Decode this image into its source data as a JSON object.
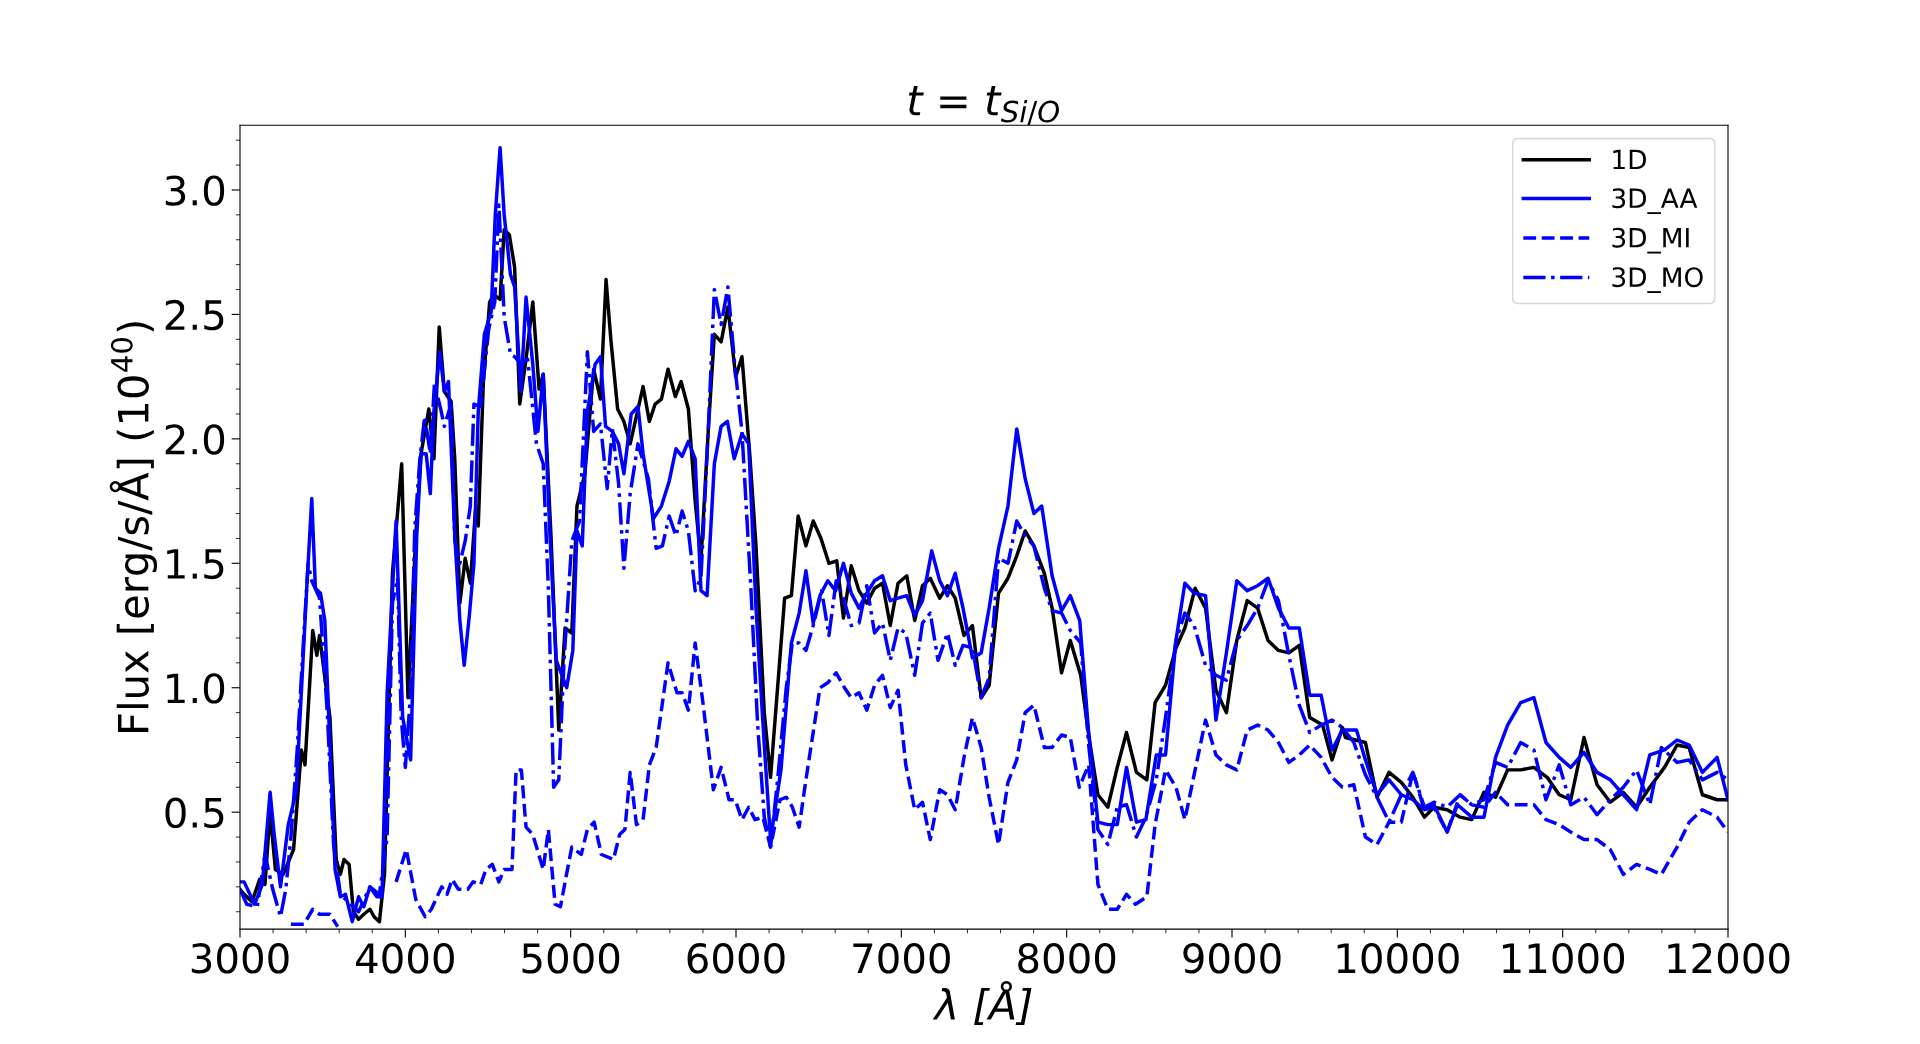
{
  "chart_data": {
    "type": "line",
    "title": "t = t$_{Si/O}$",
    "xlabel": "λ [Å]",
    "ylabel": "Flux [erg/s/Å] (10$^{40}$)",
    "xlim": [
      3000,
      12000
    ],
    "ylim": [
      0.03,
      3.26
    ],
    "xticks": [
      3000,
      4000,
      5000,
      6000,
      7000,
      8000,
      9000,
      10000,
      11000,
      12000
    ],
    "yticks": [
      0.5,
      {
        "value": 1,
        "label": "1.0"
      },
      1.5,
      {
        "value": 2,
        "label": "2.0"
      },
      2.5,
      {
        "value": 3,
        "label": "3.0"
      }
    ],
    "grid": false,
    "legend": "top right",
    "marker": "none",
    "series": [
      {
        "name": "1D",
        "color": "#000000",
        "line_style": "solid",
        "x": [
          3000,
          3025,
          3072,
          3119,
          3151,
          3182,
          3214,
          3261,
          3324,
          3371,
          3393,
          3440,
          3465,
          3481,
          3544,
          3582,
          3607,
          3629,
          3660,
          3686,
          3717,
          3749,
          3786,
          3811,
          3843,
          3874,
          3922,
          3978,
          4016,
          4063,
          4095,
          4142,
          4173,
          4205,
          4236,
          4277,
          4299,
          4330,
          4362,
          4393,
          4425,
          4441,
          4472,
          4510,
          4535,
          4573,
          4598,
          4629,
          4661,
          4692,
          4730,
          4771,
          4809,
          4834,
          4881,
          4928,
          4966,
          5007,
          5038,
          5086,
          5139,
          5180,
          5214,
          5243,
          5284,
          5322,
          5360,
          5438,
          5476,
          5511,
          5549,
          5589,
          5633,
          5668,
          5712,
          5753,
          5788,
          5832,
          5869,
          5910,
          5951,
          5998,
          6036,
          6083,
          6121,
          6171,
          6209,
          6294,
          6335,
          6376,
          6423,
          6467,
          6514,
          6562,
          6609,
          6650,
          6697,
          6744,
          6791,
          6838,
          6886,
          6933,
          6980,
          7033,
          7081,
          7128,
          7175,
          7232,
          7279,
          7326,
          7379,
          7430,
          7483,
          7531,
          7588,
          7645,
          7698,
          7749,
          7802,
          7865,
          7912,
          7969,
          8022,
          8085,
          8133,
          8189,
          8249,
          8306,
          8362,
          8422,
          8485,
          8535,
          8598,
          8661,
          8715,
          8777,
          8840,
          8903,
          8966,
          9029,
          9092,
          9155,
          9218,
          9281,
          9344,
          9407,
          9470,
          9548,
          9605,
          9668,
          9686,
          9807,
          9877,
          9950,
          10024,
          10094,
          10164,
          10221,
          10301,
          10380,
          10450,
          10524,
          10594,
          10667,
          10746,
          10826,
          10906,
          10979,
          11049,
          11129,
          11208,
          11288,
          11367,
          11447,
          11527,
          11616,
          11692,
          11765,
          11845,
          11934,
          12000
        ],
        "values": [
          0.19,
          0.17,
          0.14,
          0.23,
          0.21,
          0.5,
          0.27,
          0.25,
          0.35,
          0.75,
          0.69,
          1.23,
          1.13,
          1.21,
          0.88,
          0.31,
          0.25,
          0.31,
          0.29,
          0.1,
          0.07,
          0.09,
          0.11,
          0.08,
          0.06,
          0.25,
          1.46,
          1.9,
          0.96,
          1.61,
          1.94,
          2.12,
          1.92,
          2.45,
          2.19,
          2.15,
          1.92,
          1.34,
          1.52,
          1.42,
          1.72,
          1.65,
          2.23,
          2.55,
          2.58,
          2.56,
          2.84,
          2.82,
          2.69,
          2.14,
          2.32,
          2.55,
          2.2,
          2.26,
          1.61,
          0.83,
          1.24,
          1.22,
          1.73,
          1.86,
          2.28,
          2.16,
          2.64,
          2.4,
          2.12,
          2.07,
          1.98,
          2.21,
          2.07,
          2.14,
          2.16,
          2.28,
          2.17,
          2.23,
          2.12,
          1.75,
          1.51,
          2.03,
          2.42,
          2.39,
          2.53,
          2.25,
          2.33,
          1.94,
          1.57,
          0.9,
          0.64,
          1.36,
          1.37,
          1.69,
          1.57,
          1.67,
          1.6,
          1.5,
          1.51,
          1.28,
          1.49,
          1.39,
          1.34,
          1.4,
          1.42,
          1.25,
          1.42,
          1.45,
          1.27,
          1.41,
          1.44,
          1.36,
          1.41,
          1.36,
          1.21,
          1.25,
          0.96,
          1.01,
          1.38,
          1.44,
          1.53,
          1.63,
          1.57,
          1.46,
          1.32,
          1.06,
          1.19,
          1.05,
          0.81,
          0.57,
          0.52,
          0.68,
          0.82,
          0.66,
          0.63,
          0.94,
          1.01,
          1.16,
          1.24,
          1.4,
          1.32,
          0.99,
          0.9,
          1.19,
          1.35,
          1.32,
          1.19,
          1.15,
          1.14,
          1.17,
          0.88,
          0.85,
          0.71,
          0.84,
          0.8,
          0.78,
          0.56,
          0.66,
          0.62,
          0.56,
          0.48,
          0.52,
          0.51,
          0.48,
          0.47,
          0.58,
          0.56,
          0.67,
          0.67,
          0.68,
          0.64,
          0.57,
          0.55,
          0.8,
          0.61,
          0.54,
          0.58,
          0.52,
          0.6,
          0.68,
          0.77,
          0.76,
          0.57,
          0.55,
          0.55
        ]
      },
      {
        "name": "3D_AA",
        "color": "#0000ff",
        "line_style": "solid",
        "x": [
          3000,
          3025,
          3088,
          3135,
          3182,
          3207,
          3245,
          3292,
          3339,
          3371,
          3402,
          3434,
          3456,
          3487,
          3513,
          3544,
          3575,
          3607,
          3638,
          3679,
          3717,
          3749,
          3786,
          3827,
          3859,
          3890,
          3944,
          3984,
          4032,
          4069,
          4095,
          4126,
          4151,
          4173,
          4208,
          4236,
          4261,
          4299,
          4330,
          4356,
          4387,
          4415,
          4441,
          4478,
          4519,
          4544,
          4573,
          4598,
          4636,
          4661,
          4699,
          4730,
          4771,
          4802,
          4834,
          4875,
          4913,
          4976,
          5013,
          5038,
          5070,
          5101,
          5148,
          5180,
          5211,
          5252,
          5290,
          5322,
          5366,
          5407,
          5438,
          5501,
          5549,
          5596,
          5637,
          5674,
          5712,
          5753,
          5788,
          5825,
          5869,
          5910,
          5948,
          5989,
          6036,
          6077,
          6121,
          6171,
          6209,
          6272,
          6335,
          6382,
          6423,
          6467,
          6508,
          6555,
          6602,
          6650,
          6697,
          6744,
          6791,
          6838,
          6886,
          6933,
          6980,
          7033,
          7081,
          7128,
          7184,
          7232,
          7279,
          7326,
          7373,
          7430,
          7483,
          7531,
          7588,
          7645,
          7698,
          7749,
          7802,
          7849,
          7912,
          7969,
          8022,
          8079,
          8133,
          8189,
          8249,
          8306,
          8362,
          8422,
          8479,
          8542,
          8598,
          8661,
          8715,
          8771,
          8840,
          8903,
          8966,
          9029,
          9092,
          9155,
          9218,
          9281,
          9344,
          9407,
          9470,
          9539,
          9605,
          9668,
          9753,
          9807,
          9877,
          9950,
          10024,
          10094,
          10164,
          10221,
          10301,
          10364,
          10450,
          10524,
          10594,
          10667,
          10746,
          10826,
          10899,
          10979,
          11049,
          11129,
          11208,
          11288,
          11367,
          11447,
          11527,
          11616,
          11692,
          11765,
          11845,
          11934,
          12000
        ],
        "values": [
          0.22,
          0.22,
          0.13,
          0.21,
          0.58,
          0.41,
          0.2,
          0.45,
          0.58,
          0.98,
          1.38,
          1.76,
          1.4,
          1.38,
          1.27,
          0.77,
          0.27,
          0.16,
          0.17,
          0.06,
          0.16,
          0.12,
          0.2,
          0.16,
          0.16,
          0.98,
          1.67,
          0.88,
          0.71,
          1.61,
          1.94,
          1.94,
          1.78,
          2.11,
          2.35,
          2.19,
          2.23,
          1.61,
          1.27,
          1.09,
          1.29,
          1.5,
          2.11,
          2.42,
          2.51,
          2.9,
          3.17,
          2.9,
          2.66,
          2.61,
          2.19,
          2.57,
          2.3,
          2.03,
          2.26,
          1.61,
          1.11,
          1.0,
          1.15,
          1.63,
          1.57,
          2.11,
          2.3,
          2.33,
          2.05,
          2.03,
          1.98,
          1.86,
          2.1,
          2.13,
          1.94,
          1.68,
          1.73,
          1.83,
          1.96,
          1.93,
          1.99,
          1.92,
          1.39,
          1.37,
          1.9,
          2.05,
          2.07,
          1.92,
          2.02,
          1.98,
          1.32,
          0.77,
          0.39,
          0.67,
          1.18,
          1.3,
          1.47,
          1.26,
          1.37,
          1.43,
          1.39,
          1.5,
          1.38,
          1.32,
          1.38,
          1.43,
          1.45,
          1.35,
          1.36,
          1.37,
          1.29,
          1.35,
          1.55,
          1.43,
          1.37,
          1.46,
          1.32,
          1.12,
          1.14,
          1.32,
          1.56,
          1.73,
          2.04,
          1.84,
          1.7,
          1.73,
          1.45,
          1.31,
          1.37,
          1.27,
          0.82,
          0.46,
          0.45,
          0.45,
          0.68,
          0.46,
          0.47,
          0.73,
          0.73,
          1.19,
          1.42,
          1.38,
          1.37,
          0.87,
          1.14,
          1.43,
          1.39,
          1.41,
          1.44,
          1.32,
          1.24,
          1.24,
          0.97,
          0.97,
          0.75,
          0.83,
          0.83,
          0.71,
          0.57,
          0.63,
          0.57,
          0.55,
          0.51,
          0.53,
          0.42,
          0.53,
          0.48,
          0.48,
          0.72,
          0.85,
          0.94,
          0.96,
          0.78,
          0.72,
          0.68,
          0.74,
          0.66,
          0.63,
          0.57,
          0.51,
          0.73,
          0.75,
          0.79,
          0.77,
          0.66,
          0.72,
          0.55
        ]
      },
      {
        "name": "3D_MI",
        "color": "#0000ff",
        "line_style": "dashed",
        "x": [
          3308,
          3387,
          3440,
          3481,
          3544,
          3591,
          3654,
          3749,
          3874,
          3944,
          4006,
          4063,
          4120,
          4157,
          4220,
          4252,
          4283,
          4321,
          4378,
          4409,
          4456,
          4488,
          4526,
          4566,
          4598,
          4645,
          4670,
          4702,
          4730,
          4771,
          4834,
          4865,
          4906,
          4938,
          4975,
          5007,
          5064,
          5101,
          5142,
          5186,
          5259,
          5296,
          5328,
          5360,
          5398,
          5438,
          5476,
          5517,
          5589,
          5643,
          5674,
          5712,
          5753,
          5800,
          5863,
          5910,
          5958,
          5995,
          6036,
          6077,
          6115,
          6162,
          6209,
          6266,
          6304,
          6341,
          6382,
          6423,
          6508,
          6555,
          6606,
          6656,
          6697,
          6744,
          6791,
          6838,
          6886,
          6933,
          6980,
          7027,
          7081,
          7128,
          7175,
          7232,
          7279,
          7326,
          7379,
          7430,
          7483,
          7531,
          7588,
          7645,
          7698,
          7749,
          7802,
          7865,
          7912,
          7969,
          8022,
          8076,
          8133,
          8189,
          8249,
          8306,
          8362,
          8416,
          8485,
          8535,
          8598,
          8661,
          8715,
          8777,
          8840,
          8903,
          8966,
          9029,
          9092,
          9155,
          9218,
          9281,
          9344,
          9407,
          9470,
          9539,
          9605,
          9668,
          9737,
          9807,
          9877,
          9950,
          10024,
          10094,
          10164,
          10221,
          10301,
          10380,
          10450,
          10524,
          10594,
          10667,
          10746,
          10826,
          10899,
          10979,
          11049,
          11129,
          11208,
          11288,
          11367,
          11447,
          11527,
          11597,
          11692,
          11765,
          11845,
          11934,
          12000
        ],
        "values": [
          0.05,
          0.05,
          0.11,
          0.09,
          0.09,
          0.04,
          null,
          null,
          null,
          0.22,
          0.35,
          0.15,
          0.08,
          0.11,
          0.2,
          0.17,
          0.23,
          0.19,
          0.19,
          0.22,
          0.21,
          0.27,
          0.29,
          0.22,
          0.27,
          0.27,
          0.67,
          0.67,
          0.44,
          0.41,
          0.27,
          0.43,
          0.13,
          0.12,
          0.25,
          0.36,
          0.33,
          0.43,
          0.46,
          0.33,
          0.31,
          0.41,
          0.43,
          0.66,
          0.45,
          0.47,
          0.69,
          0.76,
          1.1,
          0.98,
          0.98,
          0.91,
          1.18,
          0.94,
          0.59,
          0.68,
          0.55,
          0.55,
          0.47,
          0.52,
          0.47,
          0.48,
          0.36,
          0.55,
          0.56,
          0.52,
          0.44,
          0.63,
          1.0,
          1.02,
          1.06,
          1.0,
          0.96,
          0.98,
          0.91,
          1.01,
          1.05,
          0.92,
          0.99,
          0.69,
          0.51,
          0.54,
          0.39,
          0.59,
          0.57,
          0.51,
          0.72,
          0.88,
          0.76,
          0.56,
          0.37,
          0.62,
          0.71,
          0.9,
          0.93,
          0.76,
          0.76,
          0.81,
          0.8,
          0.6,
          0.69,
          0.21,
          0.11,
          0.11,
          0.17,
          0.13,
          0.16,
          0.45,
          0.67,
          0.6,
          0.47,
          0.67,
          0.87,
          0.73,
          0.69,
          0.67,
          0.83,
          0.85,
          0.83,
          0.78,
          0.7,
          0.73,
          0.77,
          0.72,
          0.64,
          0.6,
          0.61,
          0.4,
          0.37,
          0.46,
          0.46,
          0.66,
          0.51,
          0.52,
          0.42,
          0.57,
          0.53,
          0.52,
          0.58,
          0.53,
          0.53,
          0.53,
          0.47,
          0.45,
          0.42,
          0.39,
          0.39,
          0.35,
          0.25,
          0.29,
          0.27,
          0.25,
          0.36,
          0.46,
          0.51,
          0.48,
          0.42
        ]
      },
      {
        "name": "3D_MO",
        "color": "#0000ff",
        "line_style": "dashdot",
        "x": [
          3000,
          3041,
          3104,
          3151,
          3198,
          3245,
          3277,
          3308,
          3346,
          3377,
          3412,
          3434,
          3481,
          3528,
          3566,
          3607,
          3654,
          3717,
          3786,
          3843,
          3890,
          3922,
          3953,
          3975,
          4000,
          4032,
          4057,
          4088,
          4117,
          4151,
          4176,
          4214,
          4236,
          4277,
          4299,
          4330,
          4362,
          4393,
          4415,
          4456,
          4504,
          4541,
          4566,
          4598,
          4636,
          4661,
          4699,
          4740,
          4793,
          4834,
          4865,
          4897,
          4928,
          4960,
          5007,
          5054,
          5101,
          5139,
          5180,
          5221,
          5252,
          5290,
          5322,
          5360,
          5407,
          5470,
          5517,
          5555,
          5596,
          5637,
          5674,
          5712,
          5753,
          5788,
          5832,
          5869,
          5910,
          5951,
          5995,
          6036,
          6090,
          6131,
          6171,
          6209,
          6256,
          6304,
          6341,
          6382,
          6423,
          6467,
          6518,
          6562,
          6606,
          6650,
          6697,
          6744,
          6791,
          6838,
          6886,
          6933,
          6980,
          7027,
          7081,
          7128,
          7175,
          7222,
          7279,
          7326,
          7373,
          7430,
          7483,
          7531,
          7588,
          7645,
          7698,
          7749,
          7802,
          7865,
          7912,
          7969,
          8022,
          8085,
          8133,
          8189,
          8249,
          8306,
          8362,
          8422,
          8479,
          8542,
          8598,
          8661,
          8715,
          8771,
          8840,
          8903,
          8966,
          9029,
          9092,
          9155,
          9218,
          9281,
          9344,
          9407,
          9470,
          9539,
          9605,
          9668,
          9737,
          9807,
          9877,
          9950,
          10024,
          10094,
          10164,
          10221,
          10301,
          10380,
          10450,
          10524,
          10594,
          10667,
          10746,
          10826,
          10899,
          10979,
          11049,
          11129,
          11208,
          11288,
          11367,
          11447,
          11527,
          11597,
          11692,
          11765,
          11845,
          11934,
          12000
        ],
        "values": [
          0.19,
          0.13,
          0.12,
          0.33,
          0.19,
          0.08,
          0.19,
          0.4,
          0.75,
          1.11,
          1.5,
          1.43,
          1.36,
          0.9,
          0.37,
          0.17,
          0.14,
          0.1,
          0.2,
          0.17,
          0.4,
          1.34,
          1.44,
          0.88,
          0.68,
          0.98,
          1.64,
          1.92,
          2.09,
          1.94,
          2.22,
          2.12,
          2.05,
          2.14,
          1.59,
          1.5,
          1.59,
          1.73,
          2.14,
          2.13,
          2.44,
          2.55,
          2.94,
          2.49,
          2.34,
          2.33,
          2.3,
          2.32,
          1.98,
          1.9,
          1.4,
          0.6,
          0.63,
          1.11,
          1.59,
          1.67,
          2.35,
          2.03,
          2.06,
          1.8,
          2.04,
          1.82,
          1.48,
          1.78,
          1.98,
          1.84,
          1.56,
          1.57,
          1.69,
          1.61,
          1.71,
          1.63,
          1.39,
          1.44,
          2.03,
          2.6,
          2.46,
          2.61,
          2.28,
          2.03,
          1.4,
          0.85,
          0.48,
          0.36,
          0.66,
          1.0,
          1.18,
          1.18,
          1.15,
          1.25,
          1.39,
          1.21,
          1.43,
          1.36,
          1.25,
          1.26,
          1.41,
          1.22,
          1.26,
          1.11,
          1.24,
          1.22,
          1.05,
          1.26,
          1.3,
          1.11,
          1.22,
          1.09,
          1.17,
          1.16,
          0.96,
          1.04,
          1.52,
          1.5,
          1.67,
          1.61,
          1.57,
          1.4,
          1.31,
          1.3,
          1.23,
          1.18,
          0.77,
          0.43,
          0.37,
          0.52,
          0.53,
          0.4,
          0.48,
          0.63,
          0.88,
          1.19,
          1.3,
          1.25,
          1.09,
          1.05,
          1.03,
          1.19,
          1.25,
          1.32,
          1.43,
          1.35,
          1.13,
          0.93,
          0.82,
          0.85,
          0.87,
          0.84,
          0.78,
          0.65,
          0.56,
          0.46,
          0.57,
          0.66,
          0.52,
          0.54,
          0.52,
          0.57,
          0.53,
          0.55,
          0.7,
          0.68,
          0.78,
          0.75,
          0.55,
          0.69,
          0.53,
          0.56,
          0.49,
          0.55,
          0.6,
          0.67,
          0.53,
          0.76,
          0.7,
          0.71,
          0.63,
          0.66,
          0.63
        ]
      }
    ]
  }
}
